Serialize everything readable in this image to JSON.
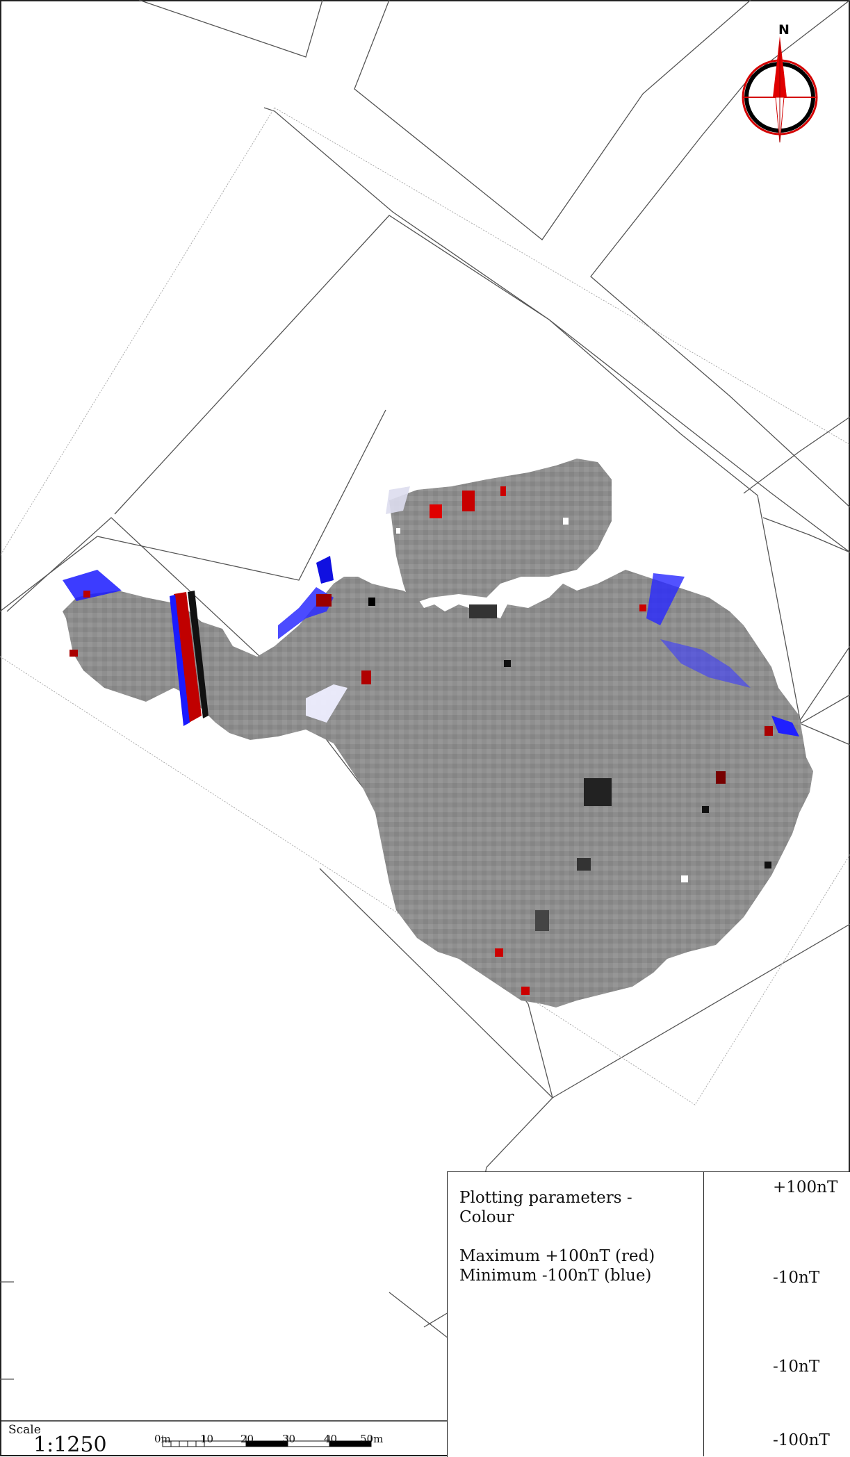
{
  "north_label": "N",
  "legend": {
    "title_line1": "Plotting parameters -",
    "title_line2": "Colour",
    "maximum": "Maximum +100nT (red)",
    "minimum": "Minimum -100nT (blue)"
  },
  "colour_bar": {
    "labels": [
      "+100nT",
      "-10nT",
      "-10nT",
      "-100nT"
    ],
    "colors": [
      "#e00000",
      "#000000",
      "#ffffff",
      "#0000ff"
    ]
  },
  "scale": {
    "word": "Scale",
    "ratio": "1:1250",
    "ticks": [
      "0m",
      "10",
      "20",
      "30",
      "40",
      "50m"
    ]
  }
}
